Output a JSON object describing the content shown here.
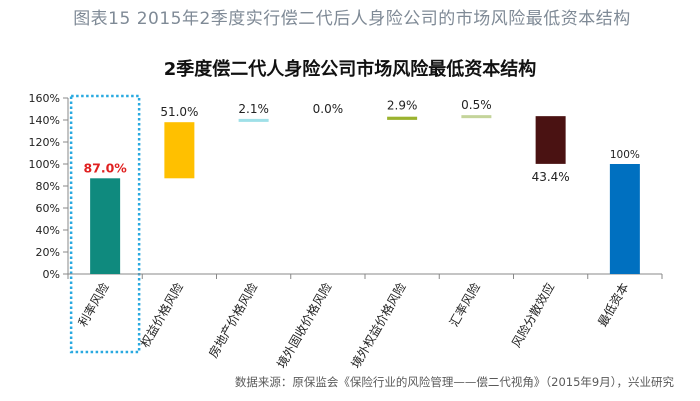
{
  "figure_caption": "图表15   2015年2季度实行偿二代后人身险公司的市场风险最低资本结构",
  "source_note": "数据来源：原保监会《保险行业的风险管理——偿二代视角》（2015年9月），兴业研究",
  "colors": {
    "teal": "#0f8a7e",
    "gold": "#ffc000",
    "light_cyan": "#9fe0e8",
    "light_olive": "#c4d49a",
    "olive": "#9bb32f",
    "dark_brown": "#4a1212",
    "blue": "#0070c0",
    "highlight_box": "#29a9e0",
    "highlight_label": "#e02020"
  },
  "chart_data": {
    "type": "bar",
    "subtype": "waterfall",
    "title": "2季度偿二代人身险公司市场风险最低资本结构",
    "xlabel": "",
    "ylabel": "",
    "ylim": [
      0,
      160
    ],
    "yticks": [
      "0%",
      "20%",
      "40%",
      "60%",
      "80%",
      "100%",
      "120%",
      "140%",
      "160%"
    ],
    "grid": false,
    "categories": [
      "利率风险",
      "权益价格风险",
      "房地产价格风险",
      "境外固收价格风险",
      "境外权益价格风险",
      "汇率风险",
      "风险分散效应",
      "最低资本"
    ],
    "values": [
      87.0,
      51.0,
      2.1,
      0.0,
      2.9,
      0.5,
      -43.4,
      100
    ],
    "bar_ranges": [
      [
        0,
        87.0
      ],
      [
        87.0,
        138.0
      ],
      [
        138.0,
        140.1
      ],
      [
        140.1,
        140.1
      ],
      [
        140.1,
        143.0
      ],
      [
        143.0,
        143.5
      ],
      [
        100.1,
        143.5
      ],
      [
        0,
        100
      ]
    ],
    "data_labels": [
      "87.0%",
      "51.0%",
      "2.1%",
      "0.0%",
      "2.9%",
      "0.5%",
      "43.4%",
      "100%"
    ],
    "highlighted_category": "利率风险"
  }
}
